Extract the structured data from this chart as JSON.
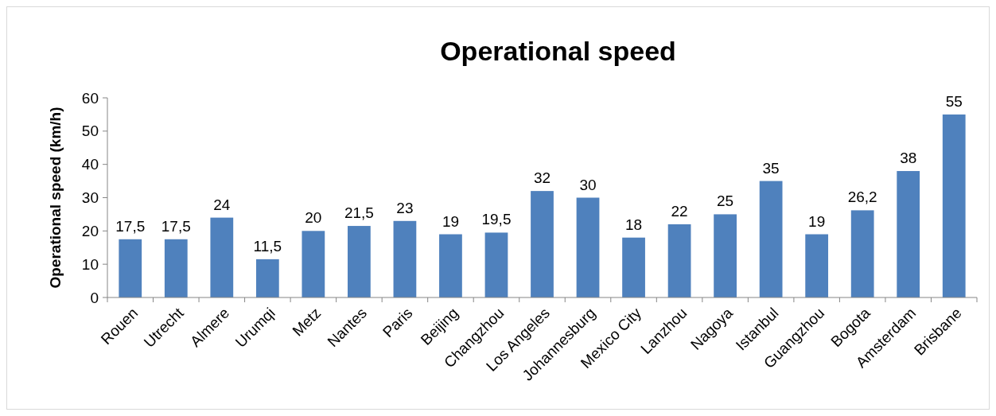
{
  "chart_data": {
    "type": "bar",
    "title": "Operational speed",
    "ylabel": "Operational speed (km/h)",
    "categories": [
      "Rouen",
      "Utrecht",
      "Almere",
      "Urumqi",
      "Metz",
      "Nantes",
      "Paris",
      "Beijing",
      "Changzhou",
      "Los Angeles",
      "Johannesburg",
      "Mexico City",
      "Lanzhou",
      "Nagoya",
      "Istanbul",
      "Guangzhou",
      "Bogota",
      "Amsterdam",
      "Brisbane"
    ],
    "values": [
      17.5,
      17.5,
      24,
      11.5,
      20,
      21.5,
      23,
      19,
      19.5,
      32,
      30,
      18,
      22,
      25,
      35,
      19,
      26.2,
      38,
      55
    ],
    "value_labels": [
      "17,5",
      "17,5",
      "24",
      "11,5",
      "20",
      "21,5",
      "23",
      "19",
      "19,5",
      "32",
      "30",
      "18",
      "22",
      "25",
      "35",
      "19",
      "26,2",
      "38",
      "55"
    ],
    "color": "#4f81bd",
    "ylim": [
      0,
      60
    ],
    "yticks": [
      0,
      10,
      20,
      30,
      40,
      50,
      60
    ],
    "grid": false
  }
}
